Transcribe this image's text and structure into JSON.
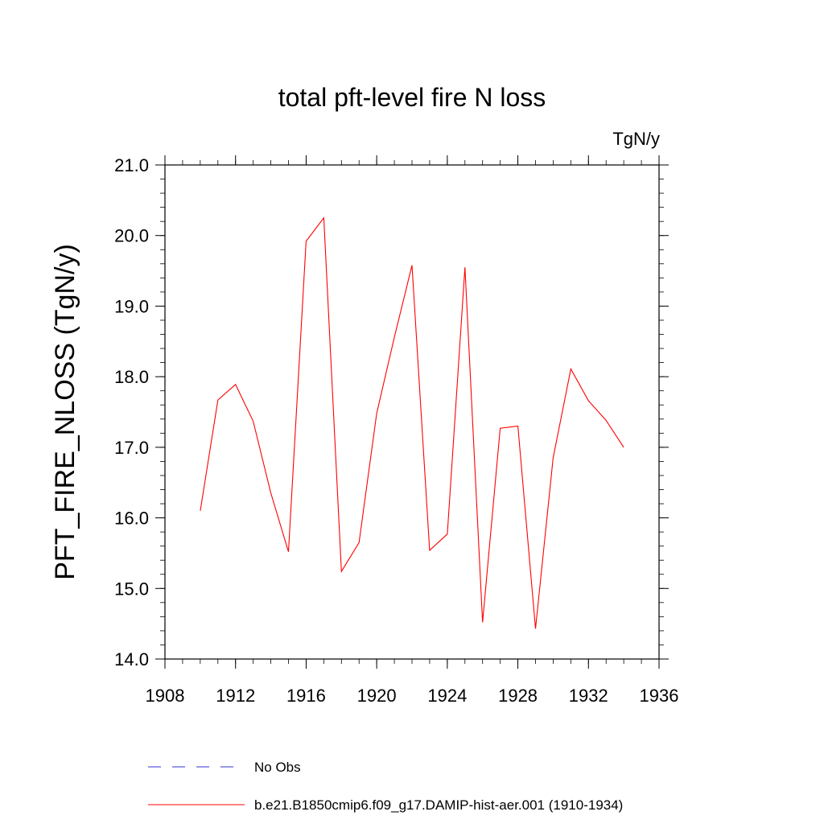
{
  "chart_data": {
    "type": "line",
    "title": "total pft-level fire N loss",
    "units": "TgN/y",
    "xlabel": "",
    "ylabel": "PFT_FIRE_NLOSS  (TgN/y)",
    "xlim": [
      1908,
      1936
    ],
    "ylim": [
      14.0,
      21.0
    ],
    "x_ticks": [
      1908,
      1912,
      1916,
      1920,
      1924,
      1928,
      1932,
      1936
    ],
    "y_ticks": [
      14.0,
      15.0,
      16.0,
      17.0,
      18.0,
      19.0,
      20.0,
      21.0
    ],
    "x_tick_labels": [
      "1908",
      "1912",
      "1916",
      "1920",
      "1924",
      "1928",
      "1932",
      "1936"
    ],
    "y_tick_labels": [
      "14.0",
      "15.0",
      "16.0",
      "17.0",
      "18.0",
      "19.0",
      "20.0",
      "21.0"
    ],
    "grid": false,
    "legend_position": "bottom",
    "series": [
      {
        "name": "b.e21.B1850cmip6.f09_g17.DAMIP-hist-aer.001 (1910-1934)",
        "color": "#ff0000",
        "style": "solid",
        "x": [
          1910,
          1911,
          1912,
          1913,
          1914,
          1915,
          1916,
          1917,
          1918,
          1919,
          1920,
          1921,
          1922,
          1923,
          1924,
          1925,
          1926,
          1927,
          1928,
          1929,
          1930,
          1931,
          1932,
          1933,
          1934
        ],
        "y": [
          16.1,
          17.67,
          17.89,
          17.37,
          16.35,
          15.52,
          19.92,
          20.25,
          15.24,
          15.65,
          17.48,
          18.56,
          19.58,
          15.54,
          15.77,
          19.55,
          14.52,
          17.27,
          17.3,
          14.43,
          16.85,
          18.11,
          17.66,
          17.38,
          17.0
        ]
      }
    ],
    "legend": [
      {
        "label": "No Obs",
        "color": "#3333cc",
        "style": "dashed"
      },
      {
        "label": "b.e21.B1850cmip6.f09_g17.DAMIP-hist-aer.001 (1910-1934)",
        "color": "#ff0000",
        "style": "solid"
      }
    ]
  }
}
